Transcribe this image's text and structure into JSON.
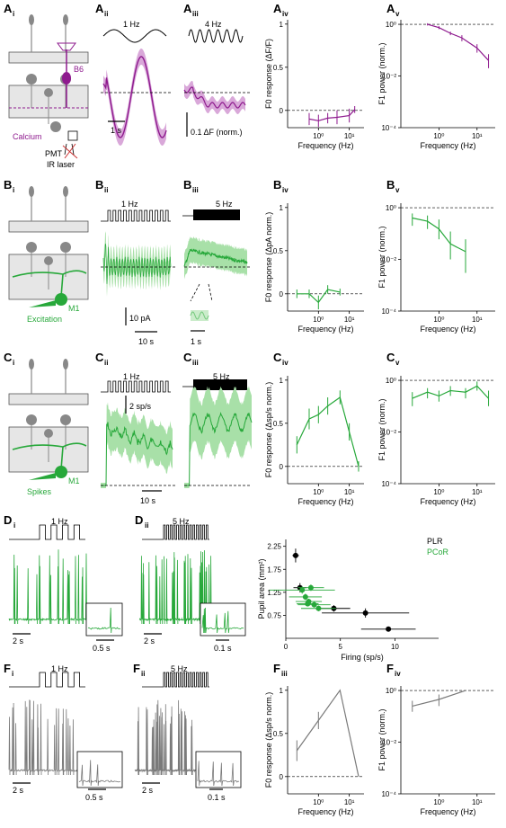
{
  "colors": {
    "calcium": "#8e1a8e",
    "calcium_fill": "#d9a8d9",
    "excitation": "#27a83a",
    "excitation_fill": "#a8e0a8",
    "gray": "#7a7a7a",
    "black": "#000000"
  },
  "rows": [
    {
      "id": "A",
      "sublabels": [
        "i",
        "ii",
        "iii",
        "iv",
        "v"
      ],
      "cell_label": "B6",
      "source_label": "Calcium",
      "pmt_label": "PMT",
      "laser_label": "IR laser",
      "stim_left": "1 Hz",
      "stim_right": "4 Hz",
      "scale_time": "1 s",
      "scale_amp": "0.1 ΔF (norm.)",
      "f0_ylabel": "F0 response (ΔF/F)",
      "f1_ylabel": "F1 power (norm.)",
      "xlabel": "Frequency (Hz)"
    },
    {
      "id": "B",
      "sublabels": [
        "i",
        "ii",
        "iii",
        "iv",
        "v"
      ],
      "cell_label": "M1",
      "source_label": "Excitation",
      "stim_left": "1 Hz",
      "stim_right": "5 Hz",
      "scale_amp": "10 pA",
      "scale_time": "10 s",
      "scale_time_inset": "1 s",
      "f0_ylabel": "F0 response (ΔpA norm.)",
      "f1_ylabel": "F1 power (norm.)",
      "xlabel": "Frequency (Hz)"
    },
    {
      "id": "C",
      "sublabels": [
        "i",
        "ii",
        "iii",
        "iv",
        "v"
      ],
      "cell_label": "M1",
      "source_label": "Spikes",
      "stim_left": "1 Hz",
      "stim_right": "5 Hz",
      "scale_amp": "2 sp/s",
      "scale_time": "10 s",
      "f0_ylabel": "F0 response (Δsp/s norm.)",
      "f1_ylabel": "F1 power (norm.)",
      "xlabel": "Frequency (Hz)"
    }
  ],
  "rowD": {
    "id": "D",
    "sublabels": [
      "i",
      "ii"
    ],
    "stim_left": "1 Hz",
    "stim_right": "5 Hz",
    "scale_left": "2 s",
    "scale_left_inset": "0.5 s",
    "scale_right": "2 s",
    "scale_right_inset": "0.1 s"
  },
  "rowF": {
    "id": "F",
    "sublabels": [
      "i",
      "ii",
      "iii",
      "iv"
    ],
    "stim_left": "1 Hz",
    "stim_right": "5 Hz",
    "scale_left": "2 s",
    "scale_left_inset": "0.5 s",
    "scale_right": "2 s",
    "scale_right_inset": "0.1 s",
    "f0_ylabel": "F0 response (Δsp/s norm.)",
    "f1_ylabel": "F1 power (norm.)",
    "xlabel": "Frequency (Hz)"
  },
  "tick_labels": {
    "f0_y": [
      "1",
      "0.5",
      "0"
    ],
    "f1_y": [
      "10⁰",
      "10⁻²",
      "10⁻⁴"
    ],
    "freq_x": [
      "10⁰",
      "10¹"
    ]
  },
  "chart_data": [
    {
      "panel": "Aiv",
      "type": "line",
      "color": "#8e1a8e",
      "ylabel": "F0 response (ΔF/F)",
      "xlabel": "Frequency (Hz)",
      "xscale": "log",
      "xlim": [
        0.1,
        30
      ],
      "ylim": [
        -0.2,
        1.05
      ],
      "x": [
        0.5,
        1,
        2,
        4,
        10,
        15
      ],
      "y": [
        -0.1,
        -0.12,
        -0.09,
        -0.08,
        -0.06,
        0.01
      ],
      "err": [
        0.07,
        0.07,
        0.06,
        0.08,
        0.08,
        0.04
      ]
    },
    {
      "panel": "Av",
      "type": "line",
      "color": "#8e1a8e",
      "ylabel": "F1 power (norm.)",
      "xlabel": "Frequency (Hz)",
      "xscale": "log",
      "yscale": "log",
      "xlim": [
        0.1,
        30
      ],
      "ylim": [
        0.0001,
        1.5
      ],
      "x": [
        0.5,
        1,
        2,
        4,
        10,
        20
      ],
      "y": [
        1.0,
        0.75,
        0.45,
        0.3,
        0.12,
        0.04
      ],
      "err_lo": [
        0.9,
        0.65,
        0.38,
        0.22,
        0.08,
        0.02
      ],
      "err_hi": [
        1.1,
        0.85,
        0.52,
        0.38,
        0.17,
        0.07
      ]
    },
    {
      "panel": "Biv",
      "type": "line",
      "color": "#27a83a",
      "ylabel": "F0 response (ΔpA norm.)",
      "xlabel": "Frequency (Hz)",
      "xscale": "log",
      "xlim": [
        0.1,
        30
      ],
      "ylim": [
        -0.2,
        1.05
      ],
      "x": [
        0.2,
        0.5,
        1,
        2,
        5
      ],
      "y": [
        0.0,
        0.0,
        -0.1,
        0.05,
        0.02
      ],
      "err": [
        0.05,
        0.05,
        0.08,
        0.05,
        0.04
      ]
    },
    {
      "panel": "Bv",
      "type": "line",
      "color": "#27a83a",
      "ylabel": "F1 power (norm.)",
      "xlabel": "Frequency (Hz)",
      "xscale": "log",
      "yscale": "log",
      "xlim": [
        0.1,
        30
      ],
      "ylim": [
        0.0001,
        1.5
      ],
      "x": [
        0.2,
        0.5,
        1,
        2,
        5
      ],
      "y": [
        0.4,
        0.3,
        0.15,
        0.04,
        0.02
      ],
      "err_lo": [
        0.2,
        0.15,
        0.06,
        0.01,
        0.003
      ],
      "err_hi": [
        0.6,
        0.5,
        0.35,
        0.12,
        0.06
      ]
    },
    {
      "panel": "Civ",
      "type": "line",
      "color": "#27a83a",
      "ylabel": "F0 response (Δsp/s norm.)",
      "xlabel": "Frequency (Hz)",
      "xscale": "log",
      "xlim": [
        0.1,
        30
      ],
      "ylim": [
        -0.2,
        1.05
      ],
      "x": [
        0.2,
        0.5,
        1,
        2,
        5,
        10,
        20
      ],
      "y": [
        0.25,
        0.55,
        0.6,
        0.7,
        0.8,
        0.4,
        0.0
      ],
      "err": [
        0.1,
        0.12,
        0.1,
        0.1,
        0.08,
        0.1,
        0.06
      ]
    },
    {
      "panel": "Cv",
      "type": "line",
      "color": "#27a83a",
      "ylabel": "F1 power (norm.)",
      "xlabel": "Frequency (Hz)",
      "xscale": "log",
      "yscale": "log",
      "xlim": [
        0.1,
        30
      ],
      "ylim": [
        0.0001,
        1.5
      ],
      "x": [
        0.2,
        0.5,
        1,
        2,
        5,
        10,
        20
      ],
      "y": [
        0.2,
        0.35,
        0.25,
        0.4,
        0.35,
        0.6,
        0.2
      ],
      "err_lo": [
        0.1,
        0.2,
        0.15,
        0.25,
        0.2,
        0.4,
        0.1
      ],
      "err_hi": [
        0.35,
        0.5,
        0.4,
        0.6,
        0.5,
        0.9,
        0.4
      ]
    },
    {
      "panel": "D-scatter",
      "type": "scatter",
      "ylabel": "Pupil area (mm²)",
      "xlabel": "Firing (sp/s)",
      "xlim": [
        0,
        14
      ],
      "ylim": [
        0.25,
        2.4
      ],
      "xticks": [
        0,
        5,
        10
      ],
      "yticks": [
        0.75,
        1.25,
        1.75,
        2.25
      ],
      "series": [
        {
          "name": "PLR",
          "color": "#000000",
          "points": [
            {
              "x": 0.9,
              "y": 2.05,
              "xerr": 0.3,
              "yerr": 0.15
            },
            {
              "x": 1.3,
              "y": 1.35,
              "xerr": 0.6,
              "yerr": 0.1
            },
            {
              "x": 4.4,
              "y": 0.9,
              "xerr": 1.5,
              "yerr": 0.07
            },
            {
              "x": 7.3,
              "y": 0.8,
              "xerr": 4.0,
              "yerr": 0.1
            },
            {
              "x": 9.4,
              "y": 0.45,
              "xerr": 2.5,
              "yerr": 0.05
            }
          ]
        },
        {
          "name": "PCoR",
          "color": "#27a83a",
          "points": [
            {
              "x": 1.5,
              "y": 1.3,
              "xerr": 3.0,
              "yerr": 0.08
            },
            {
              "x": 2.3,
              "y": 1.35,
              "xerr": 1.2,
              "yerr": 0.07
            },
            {
              "x": 1.8,
              "y": 1.15,
              "xerr": 1.5,
              "yerr": 0.07
            },
            {
              "x": 2.1,
              "y": 1.05,
              "xerr": 1.2,
              "yerr": 0.06
            },
            {
              "x": 2.6,
              "y": 0.98,
              "xerr": 1.5,
              "yerr": 0.06
            },
            {
              "x": 3.0,
              "y": 0.9,
              "xerr": 1.6,
              "yerr": 0.06
            },
            {
              "x": 2.0,
              "y": 1.0,
              "xerr": 1.0,
              "yerr": 0.05
            }
          ]
        }
      ]
    },
    {
      "panel": "Fiii",
      "type": "line",
      "color": "#7a7a7a",
      "ylabel": "F0 response (Δsp/s norm.)",
      "xlabel": "Frequency (Hz)",
      "xscale": "log",
      "xlim": [
        0.1,
        30
      ],
      "ylim": [
        -0.2,
        1.05
      ],
      "x": [
        0.2,
        1,
        5,
        20
      ],
      "y": [
        0.3,
        0.65,
        1.0,
        0.0
      ],
      "err": [
        0.12,
        0.1,
        0.0,
        0.0
      ]
    },
    {
      "panel": "Fiv",
      "type": "line",
      "color": "#7a7a7a",
      "ylabel": "F1 power (norm.)",
      "xlabel": "Frequency (Hz)",
      "xscale": "log",
      "yscale": "log",
      "xlim": [
        0.1,
        30
      ],
      "ylim": [
        0.0001,
        1.5
      ],
      "x": [
        0.2,
        1,
        5
      ],
      "y": [
        0.25,
        0.45,
        1.0
      ],
      "err_lo": [
        0.15,
        0.25,
        1.0
      ],
      "err_hi": [
        0.4,
        0.7,
        1.0
      ]
    }
  ]
}
